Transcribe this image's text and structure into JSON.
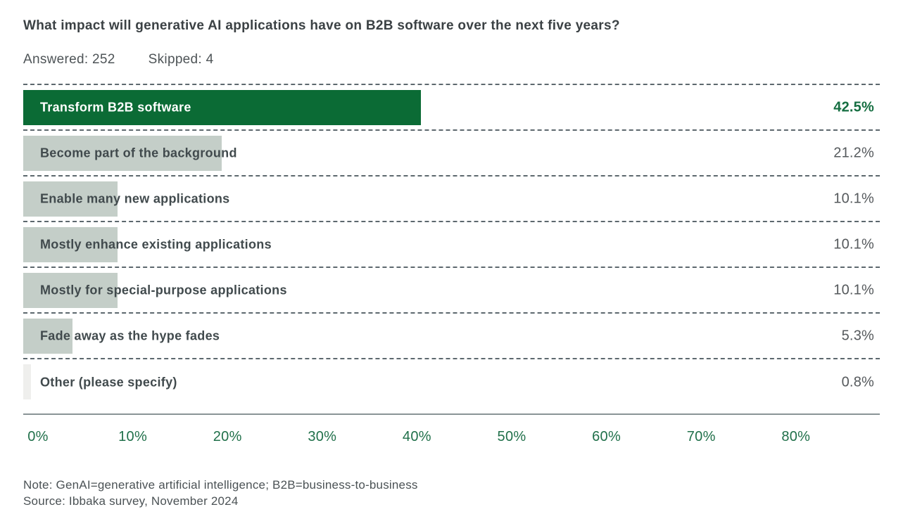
{
  "title": "What impact will generative AI applications have on B2B software over the next five years?",
  "meta": {
    "answered": "Answered: 252",
    "skipped": "Skipped: 4"
  },
  "chart_data": {
    "type": "bar",
    "orientation": "horizontal",
    "categories": [
      "Transform B2B software",
      "Become part of the background",
      "Enable many new applications",
      "Mostly enhance existing applications",
      "Mostly for special-purpose applications",
      "Fade away as the hype fades",
      "Other (please specify)"
    ],
    "values": [
      42.5,
      21.2,
      10.1,
      10.1,
      10.1,
      5.3,
      0.8
    ],
    "value_labels": [
      "42.5%",
      "21.2%",
      "10.1%",
      "10.1%",
      "10.1%",
      "5.3%",
      "0.8%"
    ],
    "highlight_index": 0,
    "x_ticks": [
      "0%",
      "10%",
      "20%",
      "30%",
      "40%",
      "50%",
      "60%",
      "70%",
      "80%"
    ],
    "xlim": [
      0,
      80
    ],
    "grid": "dashed row separators",
    "legend": "none"
  },
  "colors": {
    "bar_highlight": "#0b6b35",
    "bar_default": "#c4cec8",
    "bar_other": "#efefed",
    "label_on_highlight": "#ffffff",
    "label_default": "#414a4d",
    "value_highlight": "#156e41",
    "value_default": "#55595c",
    "axis_label": "#20704a",
    "separator": "#5d686e",
    "axis_line": "#8a9496"
  },
  "footer": {
    "note": "Note: GenAI=generative artificial intelligence; B2B=business-to-business",
    "source": "Source: Ibbaka survey, November 2024"
  }
}
